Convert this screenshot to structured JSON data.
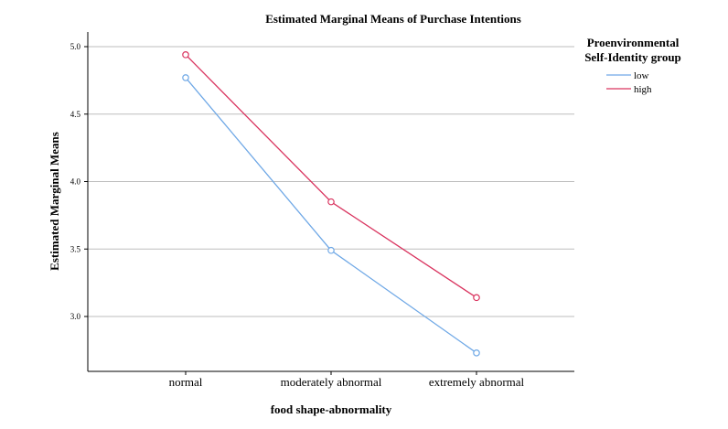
{
  "chart_data": {
    "type": "line",
    "title": "Estimated Marginal Means of Purchase Intentions",
    "xlabel": "food shape-abnormality",
    "ylabel": "Estimated Marginal Means",
    "categories": [
      "normal",
      "moderately abnormal",
      "extremely abnormal"
    ],
    "ylim": [
      2.7,
      5.1
    ],
    "yticks": [
      "3.0",
      "3.5",
      "4.0",
      "4.5",
      "5.0"
    ],
    "grid": true,
    "legend": {
      "title_line1": "Proenvironmental",
      "title_line2": "Self-Identity group",
      "placement": "top-right"
    },
    "series": [
      {
        "name": "low",
        "color": "#6fa8e6",
        "values": [
          4.77,
          3.49,
          2.73
        ]
      },
      {
        "name": "high",
        "color": "#d9345f",
        "values": [
          4.94,
          3.85,
          3.14
        ]
      }
    ]
  }
}
